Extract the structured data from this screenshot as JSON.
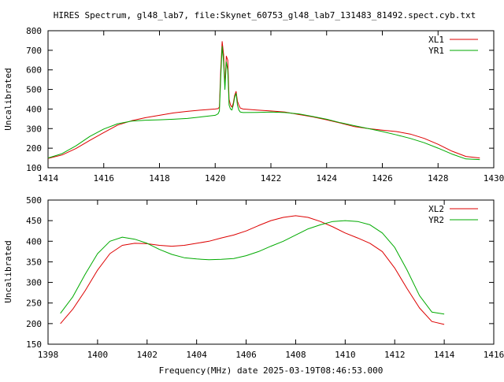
{
  "title": "HIRES Spectrum, gl48_lab7, file:Skynet_60753_gl48_lab7_131483_81492.spect.cyb.txt",
  "colors": {
    "red": "#dd0000",
    "green": "#00aa00"
  },
  "chart_data": [
    {
      "type": "line",
      "xlabel": "",
      "ylabel": "Uncalibrated",
      "xlim": [
        1414,
        1430
      ],
      "ylim": [
        100,
        800
      ],
      "xticks": [
        1414,
        1416,
        1418,
        1420,
        1422,
        1424,
        1426,
        1428,
        1430
      ],
      "yticks": [
        100,
        200,
        300,
        400,
        500,
        600,
        700,
        800
      ],
      "legend": "top-right",
      "series": [
        {
          "name": "XL1",
          "color": "#dd0000",
          "x": [
            1414.0,
            1414.5,
            1415.0,
            1415.5,
            1416.0,
            1416.5,
            1417.0,
            1417.5,
            1418.0,
            1418.5,
            1419.0,
            1419.5,
            1420.0,
            1420.1,
            1420.15,
            1420.2,
            1420.25,
            1420.3,
            1420.35,
            1420.4,
            1420.45,
            1420.5,
            1420.55,
            1420.6,
            1420.65,
            1420.7,
            1420.75,
            1420.8,
            1420.85,
            1420.9,
            1421.0,
            1421.5,
            1422.0,
            1422.5,
            1423.0,
            1423.5,
            1424.0,
            1424.5,
            1425.0,
            1425.5,
            1426.0,
            1426.5,
            1427.0,
            1427.5,
            1428.0,
            1428.5,
            1429.0,
            1429.5
          ],
          "values": [
            148,
            165,
            198,
            240,
            280,
            318,
            340,
            356,
            368,
            380,
            388,
            395,
            400,
            402,
            410,
            600,
            745,
            680,
            520,
            670,
            650,
            450,
            420,
            410,
            430,
            470,
            490,
            440,
            420,
            405,
            400,
            395,
            390,
            385,
            372,
            360,
            345,
            328,
            310,
            300,
            292,
            285,
            272,
            250,
            220,
            185,
            158,
            150
          ]
        },
        {
          "name": "YR1",
          "color": "#00aa00",
          "x": [
            1414.0,
            1414.5,
            1415.0,
            1415.5,
            1416.0,
            1416.5,
            1417.0,
            1417.5,
            1418.0,
            1418.5,
            1419.0,
            1419.5,
            1420.0,
            1420.1,
            1420.15,
            1420.2,
            1420.25,
            1420.3,
            1420.35,
            1420.4,
            1420.45,
            1420.5,
            1420.55,
            1420.6,
            1420.65,
            1420.7,
            1420.75,
            1420.8,
            1420.85,
            1420.9,
            1421.0,
            1421.5,
            1422.0,
            1422.5,
            1423.0,
            1423.5,
            1424.0,
            1424.5,
            1425.0,
            1425.5,
            1426.0,
            1426.5,
            1427.0,
            1427.5,
            1428.0,
            1428.5,
            1429.0,
            1429.5
          ],
          "values": [
            150,
            172,
            212,
            260,
            298,
            325,
            338,
            343,
            345,
            348,
            352,
            360,
            368,
            375,
            390,
            560,
            720,
            640,
            500,
            640,
            600,
            420,
            400,
            395,
            420,
            460,
            480,
            420,
            395,
            385,
            382,
            383,
            385,
            382,
            375,
            362,
            348,
            330,
            315,
            300,
            285,
            268,
            250,
            228,
            200,
            170,
            145,
            142
          ]
        }
      ]
    },
    {
      "type": "line",
      "xlabel": "Frequency(MHz) date 2025-03-19T08:46:53.000",
      "ylabel": "Uncalibrated",
      "xlim": [
        1398,
        1416
      ],
      "ylim": [
        150,
        500
      ],
      "xticks": [
        1398,
        1400,
        1402,
        1404,
        1406,
        1408,
        1410,
        1412,
        1414,
        1416
      ],
      "yticks": [
        150,
        200,
        250,
        300,
        350,
        400,
        450,
        500
      ],
      "legend": "top-right",
      "series": [
        {
          "name": "XL2",
          "color": "#dd0000",
          "x": [
            1398.5,
            1399.0,
            1399.5,
            1400.0,
            1400.5,
            1401.0,
            1401.5,
            1402.0,
            1402.5,
            1403.0,
            1403.5,
            1404.0,
            1404.5,
            1405.0,
            1405.5,
            1406.0,
            1406.5,
            1407.0,
            1407.5,
            1408.0,
            1408.5,
            1409.0,
            1409.5,
            1410.0,
            1410.5,
            1411.0,
            1411.5,
            1412.0,
            1412.5,
            1413.0,
            1413.5,
            1414.0
          ],
          "values": [
            200,
            235,
            280,
            330,
            370,
            390,
            395,
            394,
            390,
            388,
            390,
            395,
            400,
            408,
            415,
            425,
            438,
            450,
            458,
            462,
            458,
            448,
            435,
            420,
            408,
            395,
            375,
            335,
            285,
            238,
            205,
            198
          ]
        },
        {
          "name": "YR2",
          "color": "#00aa00",
          "x": [
            1398.5,
            1399.0,
            1399.5,
            1400.0,
            1400.5,
            1401.0,
            1401.5,
            1402.0,
            1402.5,
            1403.0,
            1403.5,
            1404.0,
            1404.5,
            1405.0,
            1405.5,
            1406.0,
            1406.5,
            1407.0,
            1407.5,
            1408.0,
            1408.5,
            1409.0,
            1409.5,
            1410.0,
            1410.5,
            1411.0,
            1411.5,
            1412.0,
            1412.5,
            1413.0,
            1413.5,
            1414.0
          ],
          "values": [
            225,
            265,
            320,
            370,
            400,
            410,
            405,
            395,
            380,
            368,
            360,
            357,
            355,
            356,
            358,
            365,
            375,
            388,
            400,
            415,
            430,
            440,
            448,
            450,
            448,
            440,
            420,
            385,
            330,
            268,
            228,
            223
          ]
        }
      ]
    }
  ]
}
